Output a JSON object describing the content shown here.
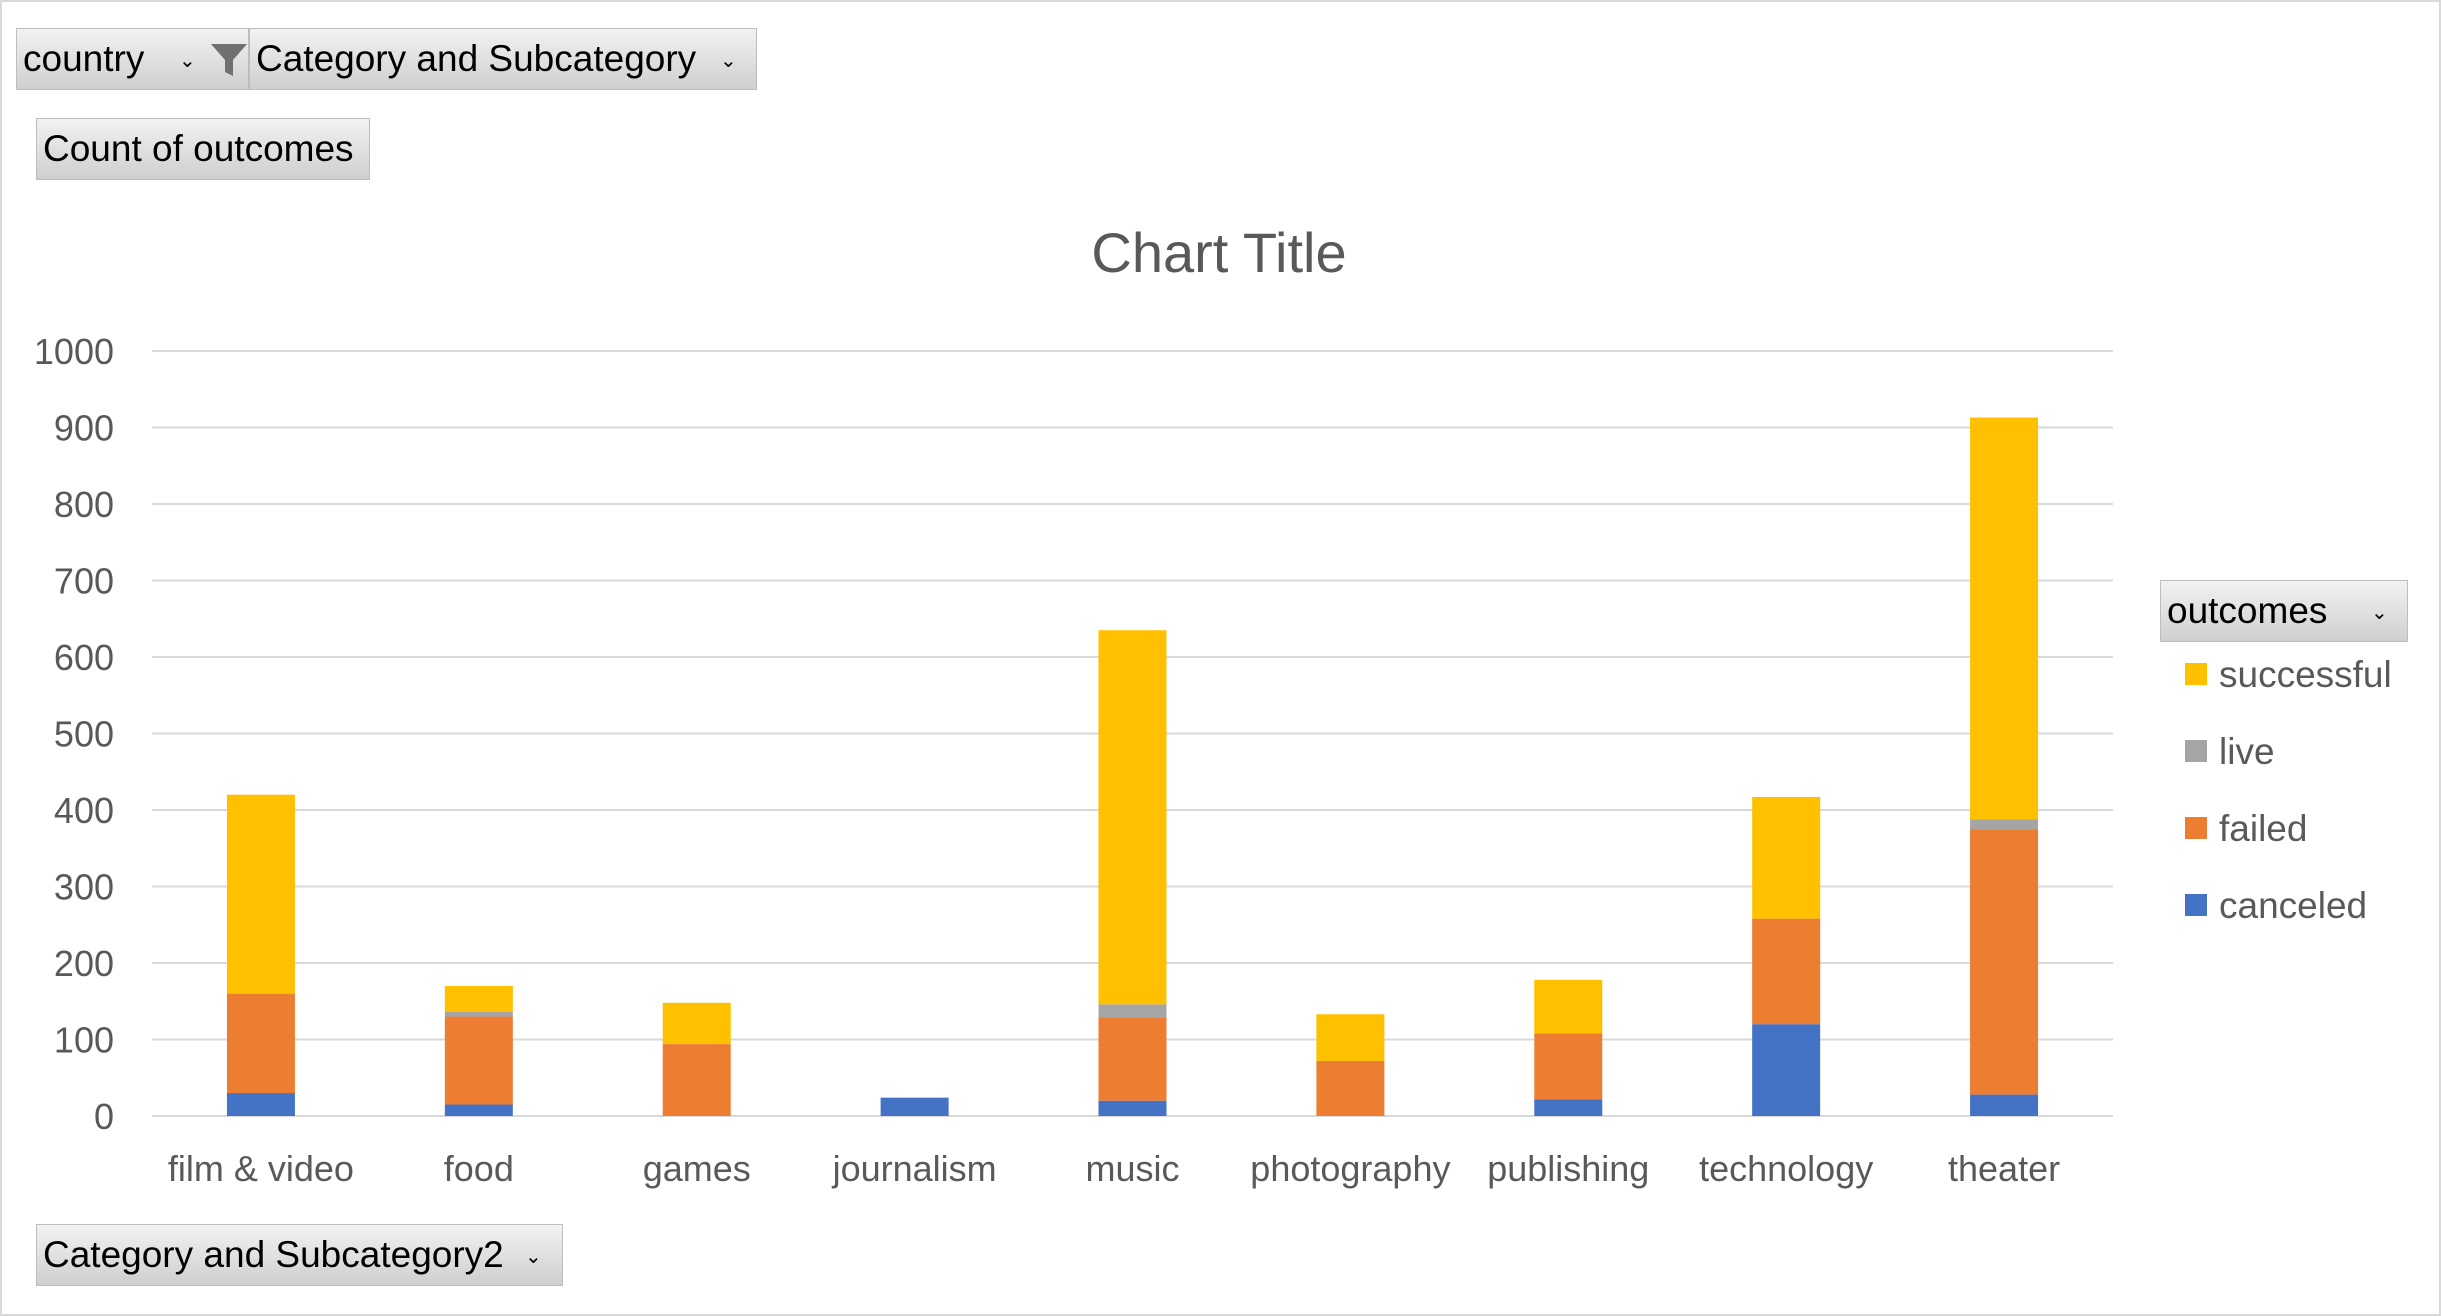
{
  "filters": {
    "country_label": "country",
    "category_label": "Category and Subcategory",
    "values_label": "Count of outcomes",
    "axis_field_label": "Category and Subcategory2",
    "legend_field_label": "outcomes"
  },
  "chart_data": {
    "type": "bar",
    "stacked": true,
    "title": "Chart Title",
    "xlabel": "",
    "ylabel": "",
    "ylim": [
      0,
      1000
    ],
    "yticks": [
      0,
      100,
      200,
      300,
      400,
      500,
      600,
      700,
      800,
      900,
      1000
    ],
    "grid": true,
    "legend_position": "right",
    "categories": [
      "film & video",
      "food",
      "games",
      "journalism",
      "music",
      "photography",
      "publishing",
      "technology",
      "theater"
    ],
    "series": [
      {
        "name": "canceled",
        "color": "#4472c4",
        "values": [
          30,
          15,
          0,
          24,
          20,
          0,
          22,
          120,
          28
        ]
      },
      {
        "name": "failed",
        "color": "#ed7d31",
        "values": [
          130,
          115,
          94,
          0,
          109,
          72,
          86,
          138,
          347
        ]
      },
      {
        "name": "live",
        "color": "#a5a5a5",
        "values": [
          0,
          6,
          0,
          0,
          17,
          0,
          0,
          0,
          13
        ]
      },
      {
        "name": "successful",
        "color": "#ffc000",
        "values": [
          260,
          34,
          54,
          0,
          489,
          61,
          70,
          159,
          525
        ]
      }
    ],
    "legend_order": [
      "successful",
      "live",
      "failed",
      "canceled"
    ]
  }
}
